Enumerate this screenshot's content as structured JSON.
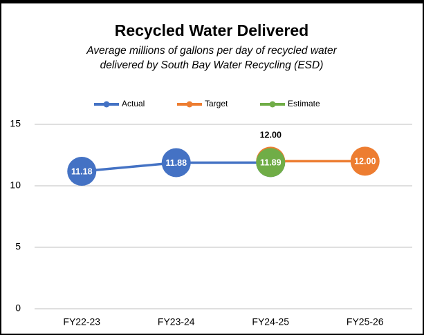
{
  "chart_data": {
    "type": "line",
    "title": "Recycled Water Delivered",
    "subtitle": [
      "Average millions of gallons per day of recycled water",
      "delivered by South Bay Water Recycling (ESD)"
    ],
    "categories": [
      "FY22-23",
      "FY23-24",
      "FY24-25",
      "FY25-26"
    ],
    "series": [
      {
        "name": "Actual",
        "color": "#4472c4",
        "values": [
          11.18,
          11.88,
          11.89,
          null
        ],
        "value_labels": [
          "11.18",
          "11.88",
          "11.89",
          null
        ]
      },
      {
        "name": "Target",
        "color": "#ed7d31",
        "values": [
          null,
          null,
          12,
          12
        ],
        "value_labels": [
          null,
          null,
          "12.00",
          "12.00"
        ]
      },
      {
        "name": "Estimate",
        "color": "#70ad47",
        "values": [
          null,
          null,
          11.89,
          null
        ],
        "value_labels": [
          null,
          null,
          "11.89",
          null
        ]
      }
    ],
    "ylim": [
      0,
      15
    ],
    "yticks": [
      0,
      5,
      10,
      15
    ],
    "grid": true,
    "legend": "top"
  }
}
